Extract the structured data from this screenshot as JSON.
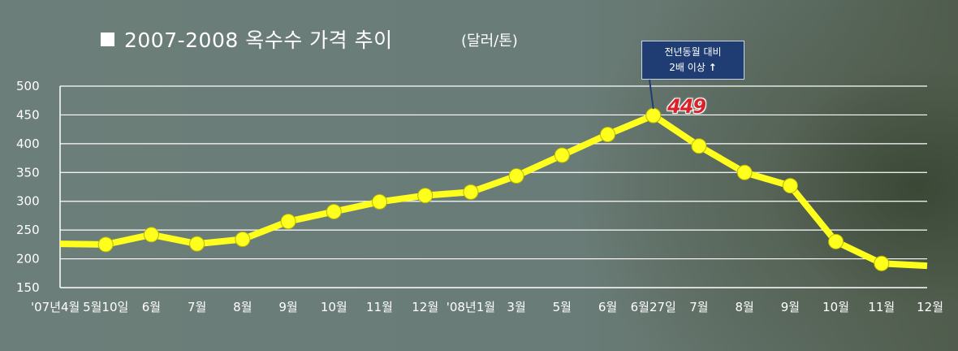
{
  "title": "2007-2008 옥수수 가격 추이",
  "unit": "(달러/톤)",
  "callout": {
    "line1": "전년동월 대비",
    "line2": "2배 이상",
    "arrow": "↑"
  },
  "peak_label": "449",
  "colors": {
    "line": "#ffff1e",
    "marker": "#ffff1e",
    "marker_stroke": "#b8b800",
    "grid": "#ffffff",
    "callout_bg": "#1f3d73",
    "peak_text": "#d8232a"
  },
  "chart_data": {
    "type": "line",
    "title": "2007-2008 옥수수 가격 추이",
    "ylabel": "(달러/톤)",
    "xlabel": "",
    "ylim": [
      150,
      500
    ],
    "yticks": [
      150,
      200,
      250,
      300,
      350,
      400,
      450,
      500
    ],
    "grid": true,
    "categories": [
      "'07년4월",
      "5월10일",
      "6월",
      "7월",
      "8월",
      "9월",
      "10월",
      "11월",
      "12월",
      "'08년1월",
      "3월",
      "5월",
      "6월",
      "6월27일",
      "7월",
      "8월",
      "9월",
      "10월",
      "11월",
      "12월"
    ],
    "values": [
      226,
      225,
      242,
      226,
      234,
      265,
      282,
      299,
      310,
      316,
      344,
      380,
      416,
      449,
      396,
      350,
      327,
      230,
      192,
      188
    ],
    "markers": [
      false,
      true,
      true,
      true,
      true,
      true,
      true,
      true,
      true,
      true,
      true,
      true,
      true,
      true,
      true,
      true,
      true,
      true,
      true,
      false
    ]
  }
}
